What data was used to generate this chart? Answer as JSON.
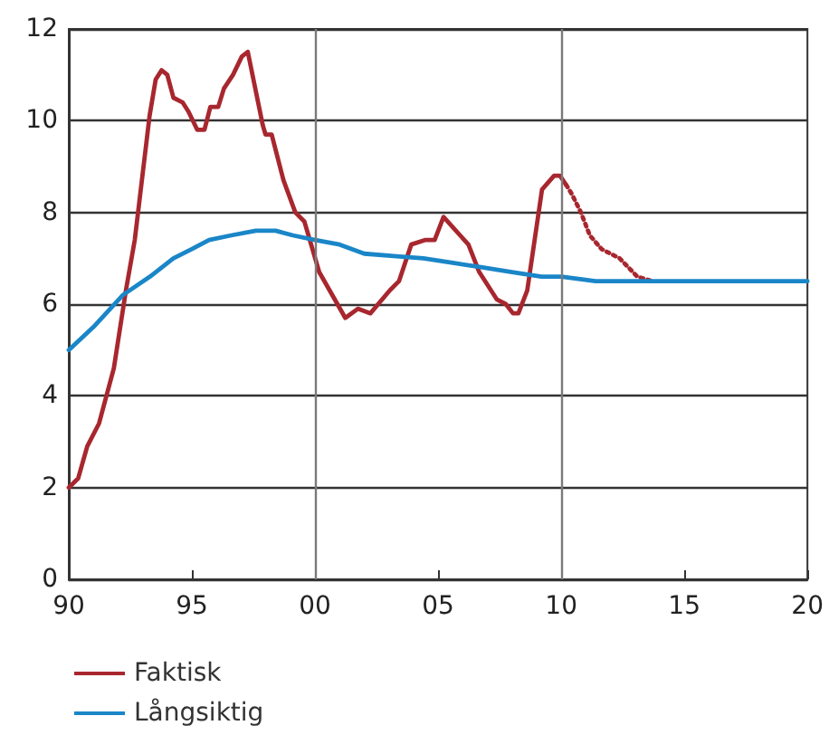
{
  "chart_data": {
    "type": "line",
    "series": [
      {
        "name": "Faktisk",
        "color": "#a8272f",
        "line_style": "solid",
        "x": [
          1990.0,
          1990.38,
          1990.75,
          1991.23,
          1991.83,
          1992.32,
          1992.68,
          1993.28,
          1993.53,
          1993.77,
          1994.0,
          1994.25,
          1994.62,
          1994.86,
          1995.22,
          1995.51,
          1995.75,
          1996.07,
          1996.3,
          1996.67,
          1997.03,
          1997.27,
          1997.88,
          1997.99,
          1998.24,
          1998.72,
          1999.2,
          1999.57,
          2000.17,
          2001.23,
          2001.74,
          2002.25,
          2003.04,
          2003.41,
          2003.91,
          2004.49,
          2004.86,
          2005.22,
          2006.23,
          2006.67,
          2007.39,
          2007.75,
          2008.04,
          2008.26,
          2008.62,
          2009.22,
          2009.71,
          2009.95,
          2010.2
        ],
        "values": [
          2.0,
          2.2,
          2.9,
          3.4,
          4.6,
          6.3,
          7.4,
          10.1,
          10.9,
          11.1,
          11.0,
          10.5,
          10.4,
          10.2,
          9.8,
          9.8,
          10.3,
          10.3,
          10.7,
          11.0,
          11.4,
          11.5,
          9.9,
          9.7,
          9.7,
          8.7,
          8.0,
          7.8,
          6.7,
          5.7,
          5.9,
          5.8,
          6.3,
          6.5,
          7.3,
          7.4,
          7.4,
          7.9,
          7.3,
          6.7,
          6.1,
          6.0,
          5.8,
          5.8,
          6.3,
          8.5,
          8.8,
          8.8,
          8.6
        ]
      },
      {
        "color": "#a8272f",
        "line_style": "dotted",
        "x": [
          2010.2,
          2010.43,
          2010.8,
          2011.16,
          2011.64,
          2012.37,
          2013.09,
          2013.7
        ],
        "values": [
          8.6,
          8.4,
          8.0,
          7.5,
          7.2,
          7.0,
          6.6,
          6.5
        ]
      },
      {
        "name": "Långsiktig",
        "color": "#1a86c8",
        "line_style": "solid",
        "x": [
          1990.0,
          1991.0,
          1992.2,
          1993.3,
          1994.25,
          1995.0,
          1995.7,
          1996.6,
          1997.6,
          1998.4,
          1999.1,
          2000.0,
          2001.0,
          2002.0,
          2003.2,
          2004.4,
          2005.6,
          2006.8,
          2008.0,
          2009.2,
          2010.0,
          2011.4,
          2012.6,
          2013.8,
          2016.0,
          2018.0,
          2020.0
        ],
        "values": [
          5.0,
          5.5,
          6.2,
          6.6,
          7.0,
          7.2,
          7.4,
          7.5,
          7.6,
          7.6,
          7.5,
          7.4,
          7.3,
          7.1,
          7.05,
          7.0,
          6.9,
          6.8,
          6.7,
          6.6,
          6.6,
          6.5,
          6.5,
          6.5,
          6.5,
          6.5,
          6.5
        ]
      }
    ],
    "xlim": [
      1990,
      2020
    ],
    "xticks": [
      {
        "value": 1990,
        "label": "90"
      },
      {
        "value": 1995,
        "label": "95"
      },
      {
        "value": 2000,
        "label": "00"
      },
      {
        "value": 2005,
        "label": "05"
      },
      {
        "value": 2010,
        "label": "10"
      },
      {
        "value": 2015,
        "label": "15"
      },
      {
        "value": 2020,
        "label": "20"
      }
    ],
    "ylim": [
      0,
      12
    ],
    "yticks": [
      0,
      2,
      4,
      6,
      8,
      10,
      12
    ],
    "grid": "y",
    "ref_lines": [
      {
        "axis": "x",
        "value": 2000,
        "color": "#7a7a7a"
      },
      {
        "axis": "x",
        "value": 2010,
        "color": "#7a7a7a"
      }
    ],
    "legend": "bottom left",
    "marker": "none"
  }
}
